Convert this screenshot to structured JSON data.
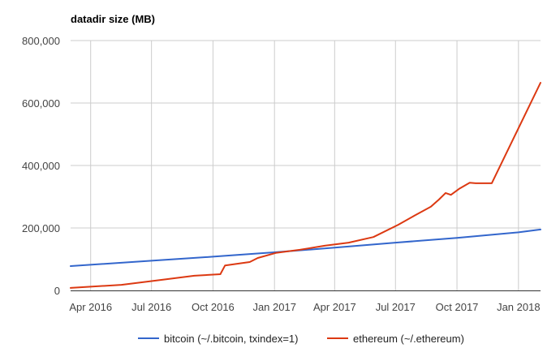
{
  "chart_data": {
    "type": "line",
    "title": "datadir size (MB)",
    "xlabel": "",
    "ylabel": "",
    "ylim": [
      0,
      800000
    ],
    "xlim": [
      "2016-03-02",
      "2018-02-03"
    ],
    "grid": true,
    "legend_position": "bottom",
    "y_ticks": [
      {
        "value": 0,
        "label": "0"
      },
      {
        "value": 200000,
        "label": "200,000"
      },
      {
        "value": 400000,
        "label": "400,000"
      },
      {
        "value": 600000,
        "label": "600,000"
      },
      {
        "value": 800000,
        "label": "800,000"
      }
    ],
    "x_ticks": [
      {
        "date": "2016-04-01",
        "label": "Apr 2016"
      },
      {
        "date": "2016-07-01",
        "label": "Jul 2016"
      },
      {
        "date": "2016-10-01",
        "label": "Oct 2016"
      },
      {
        "date": "2017-01-01",
        "label": "Jan 2017"
      },
      {
        "date": "2017-04-01",
        "label": "Apr 2017"
      },
      {
        "date": "2017-07-01",
        "label": "Jul 2017"
      },
      {
        "date": "2017-10-01",
        "label": "Oct 2017"
      },
      {
        "date": "2018-01-01",
        "label": "Jan 2018"
      }
    ],
    "series": [
      {
        "name": "bitcoin (~/.bitcoin, txindex=1)",
        "color": "#3366cc",
        "points": [
          {
            "x": "2016-03-02",
            "y": 78000
          },
          {
            "x": "2016-07-01",
            "y": 95000
          },
          {
            "x": "2016-10-01",
            "y": 108000
          },
          {
            "x": "2017-01-01",
            "y": 122000
          },
          {
            "x": "2017-04-01",
            "y": 137000
          },
          {
            "x": "2017-07-01",
            "y": 153000
          },
          {
            "x": "2017-10-01",
            "y": 168000
          },
          {
            "x": "2018-01-01",
            "y": 186000
          },
          {
            "x": "2018-02-03",
            "y": 195000
          }
        ]
      },
      {
        "name": "ethereum (~/.ethereum)",
        "color": "#dc3912",
        "points": [
          {
            "x": "2016-03-02",
            "y": 8000
          },
          {
            "x": "2016-05-17",
            "y": 18000
          },
          {
            "x": "2016-07-17",
            "y": 34000
          },
          {
            "x": "2016-09-03",
            "y": 47000
          },
          {
            "x": "2016-10-12",
            "y": 52000
          },
          {
            "x": "2016-10-19",
            "y": 80000
          },
          {
            "x": "2016-11-15",
            "y": 88000
          },
          {
            "x": "2016-11-25",
            "y": 91000
          },
          {
            "x": "2016-12-07",
            "y": 104000
          },
          {
            "x": "2017-01-03",
            "y": 120000
          },
          {
            "x": "2017-02-08",
            "y": 130000
          },
          {
            "x": "2017-03-17",
            "y": 143000
          },
          {
            "x": "2017-04-22",
            "y": 153000
          },
          {
            "x": "2017-05-29",
            "y": 171000
          },
          {
            "x": "2017-07-05",
            "y": 210000
          },
          {
            "x": "2017-07-29",
            "y": 239000
          },
          {
            "x": "2017-08-23",
            "y": 268000
          },
          {
            "x": "2017-09-04",
            "y": 291000
          },
          {
            "x": "2017-09-14",
            "y": 312000
          },
          {
            "x": "2017-09-22",
            "y": 306000
          },
          {
            "x": "2017-10-04",
            "y": 325000
          },
          {
            "x": "2017-10-20",
            "y": 345000
          },
          {
            "x": "2017-10-29",
            "y": 343000
          },
          {
            "x": "2017-11-22",
            "y": 343000
          },
          {
            "x": "2018-02-03",
            "y": 665000
          }
        ]
      }
    ]
  }
}
